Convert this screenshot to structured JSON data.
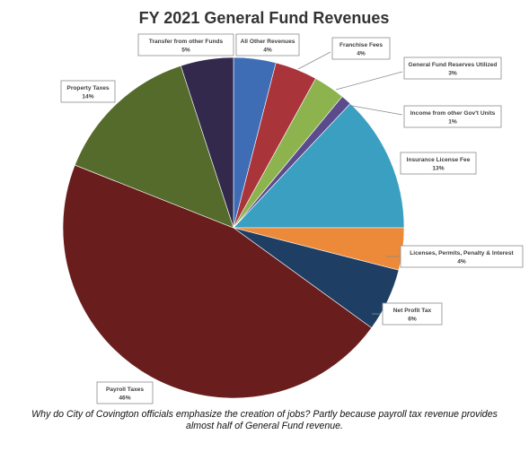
{
  "chart_data": {
    "type": "pie",
    "title": "FY 2021 General Fund Revenues",
    "slices": [
      {
        "label": "All Other Revenues",
        "pct_label": "4%",
        "value": 4,
        "color": "#3e6db5"
      },
      {
        "label": "Franchise Fees",
        "pct_label": "4%",
        "value": 4,
        "color": "#a9343a"
      },
      {
        "label": "General Fund Reserves Utilized",
        "pct_label": "3%",
        "value": 3,
        "color": "#8db34f"
      },
      {
        "label": "Income from other Gov't Units",
        "pct_label": "1%",
        "value": 1,
        "color": "#5b4a8c"
      },
      {
        "label": "Insurance License Fee",
        "pct_label": "13%",
        "value": 13,
        "color": "#3b9fc2"
      },
      {
        "label": "Licenses, Permits, Penalty & Interest",
        "pct_label": "4%",
        "value": 4,
        "color": "#ec8a3a"
      },
      {
        "label": "Net Profit Tax",
        "pct_label": "6%",
        "value": 6,
        "color": "#1e3f63"
      },
      {
        "label": "Payroll Taxes",
        "pct_label": "46%",
        "value": 46,
        "color": "#6a1d1d"
      },
      {
        "label": "Property Taxes",
        "pct_label": "14%",
        "value": 14,
        "color": "#556b2b"
      },
      {
        "label": "Transfer from other Funds",
        "pct_label": "5%",
        "value": 5,
        "color": "#33294d"
      }
    ]
  },
  "caption": {
    "line1": "Why do City of Covington officials emphasize the creation of jobs? Partly because payroll tax revenue provides",
    "line2": "almost half of General Fund revenue."
  }
}
